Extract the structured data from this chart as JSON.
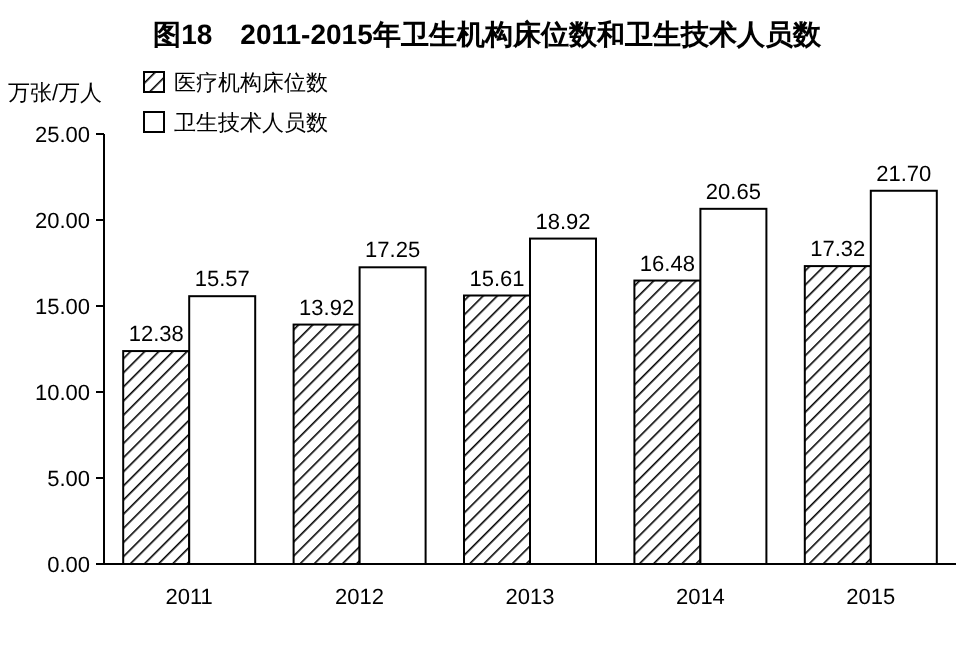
{
  "chart_data": {
    "type": "bar",
    "title": "图18　2011-2015年卫生机构床位数和卫生技术人员数",
    "ylabel": "万张/万人",
    "categories": [
      "2011",
      "2012",
      "2013",
      "2014",
      "2015"
    ],
    "series": [
      {
        "name": "医疗机构床位数",
        "color": "#000000",
        "values": [
          12.38,
          13.92,
          15.61,
          16.48,
          17.32
        ],
        "value_labels": [
          "12.38",
          "13.92",
          "15.61",
          "16.48",
          "17.32"
        ]
      },
      {
        "name": "卫生技术人员数",
        "color": "#ffffff",
        "values": [
          15.57,
          17.25,
          18.92,
          20.65,
          21.7
        ],
        "value_labels": [
          "15.57",
          "17.25",
          "18.92",
          "20.65",
          "21.70"
        ]
      }
    ],
    "ylim": [
      0,
      25
    ],
    "yticks": [
      {
        "value": 0,
        "label": "0.00"
      },
      {
        "value": 5,
        "label": "5.00"
      },
      {
        "value": 10,
        "label": "10.00"
      },
      {
        "value": 15,
        "label": "15.00"
      },
      {
        "value": 20,
        "label": "20.00"
      },
      {
        "value": 25,
        "label": "25.00"
      }
    ],
    "grid": false,
    "legend": "top left"
  }
}
